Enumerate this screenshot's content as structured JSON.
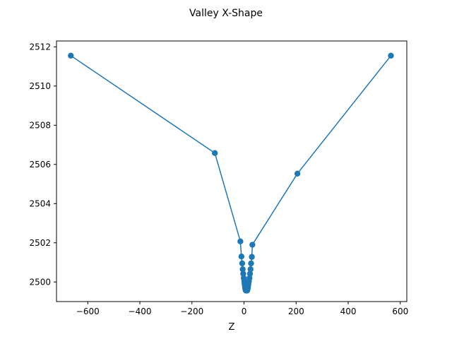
{
  "chart_data": {
    "type": "line",
    "title": "Valley X-Shape",
    "xlabel": "Z",
    "ylabel": "",
    "xlim": [
      -720,
      625
    ],
    "ylim": [
      2499.0,
      2512.3
    ],
    "xticks": [
      -600,
      -400,
      -200,
      0,
      200,
      400,
      600
    ],
    "yticks": [
      2500,
      2502,
      2504,
      2506,
      2508,
      2510,
      2512
    ],
    "grid": false,
    "series_color": "#1f77b4",
    "series": [
      {
        "values": [
          {
            "x": -665,
            "y": 2511.55
          },
          {
            "x": -112,
            "y": 2506.58
          },
          {
            "x": -14,
            "y": 2502.07
          },
          {
            "x": -10,
            "y": 2501.3
          },
          {
            "x": -7,
            "y": 2500.95
          },
          {
            "x": -5,
            "y": 2500.65
          },
          {
            "x": -3,
            "y": 2500.42
          },
          {
            "x": -1,
            "y": 2500.2
          },
          {
            "x": 1,
            "y": 2500.05
          },
          {
            "x": 2,
            "y": 2499.92
          },
          {
            "x": 3,
            "y": 2499.82
          },
          {
            "x": 4,
            "y": 2499.73
          },
          {
            "x": 5,
            "y": 2499.66
          },
          {
            "x": 6,
            "y": 2499.6
          },
          {
            "x": 7,
            "y": 2499.56
          }
        ]
      },
      {
        "values": [
          {
            "x": 564,
            "y": 2511.55
          },
          {
            "x": 205,
            "y": 2505.53
          },
          {
            "x": 32,
            "y": 2501.9
          },
          {
            "x": 30,
            "y": 2501.28
          },
          {
            "x": 27,
            "y": 2500.95
          },
          {
            "x": 25,
            "y": 2500.65
          },
          {
            "x": 23,
            "y": 2500.42
          },
          {
            "x": 21,
            "y": 2500.2
          },
          {
            "x": 19,
            "y": 2500.05
          },
          {
            "x": 17,
            "y": 2499.92
          },
          {
            "x": 16,
            "y": 2499.82
          },
          {
            "x": 15,
            "y": 2499.73
          },
          {
            "x": 14,
            "y": 2499.66
          },
          {
            "x": 13,
            "y": 2499.6
          },
          {
            "x": 12,
            "y": 2499.56
          }
        ]
      }
    ]
  }
}
